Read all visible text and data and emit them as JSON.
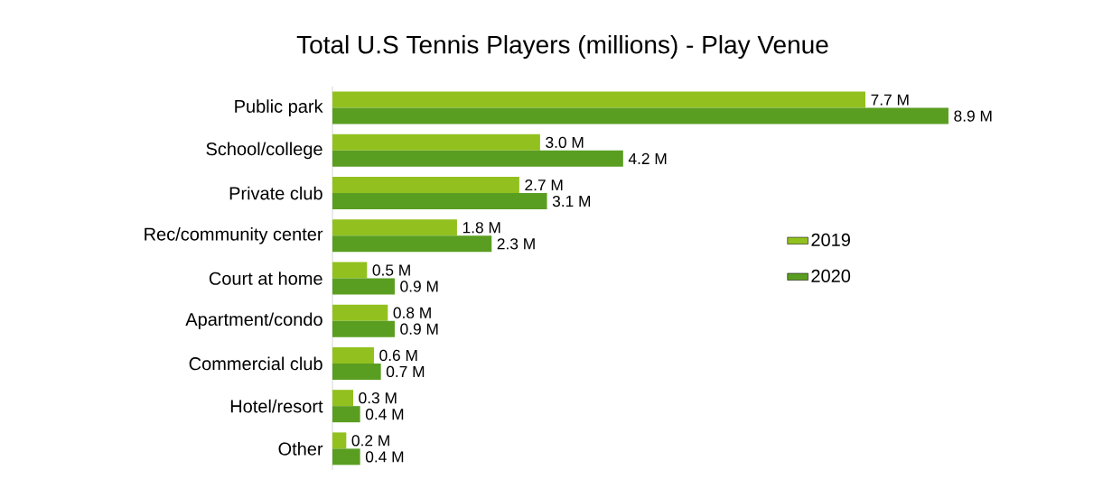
{
  "chart_data": {
    "type": "bar",
    "orientation": "horizontal",
    "title": "Total U.S Tennis Players (millions) - Play Venue",
    "categories": [
      "Public park",
      "School/college",
      "Private club",
      "Rec/community center",
      "Court at home",
      "Apartment/condo",
      "Commercial club",
      "Hotel/resort",
      "Other"
    ],
    "series": [
      {
        "name": "2019",
        "color": "#92c11f",
        "values": [
          7.7,
          3.0,
          2.7,
          1.8,
          0.5,
          0.8,
          0.6,
          0.3,
          0.2
        ],
        "value_labels": [
          "7.7 M",
          "3.0 M",
          "2.7 M",
          "1.8 M",
          "0.5 M",
          "0.8 M",
          "0.6 M",
          "0.3 M",
          "0.2 M"
        ]
      },
      {
        "name": "2020",
        "color": "#5a9e21",
        "values": [
          8.9,
          4.2,
          3.1,
          2.3,
          0.9,
          0.9,
          0.7,
          0.4,
          0.4
        ],
        "value_labels": [
          "8.9 M",
          "4.2 M",
          "3.1 M",
          "2.3 M",
          "0.9 M",
          "0.9 M",
          "0.7 M",
          "0.4 M",
          "0.4 M"
        ]
      }
    ],
    "legend": "right"
  }
}
